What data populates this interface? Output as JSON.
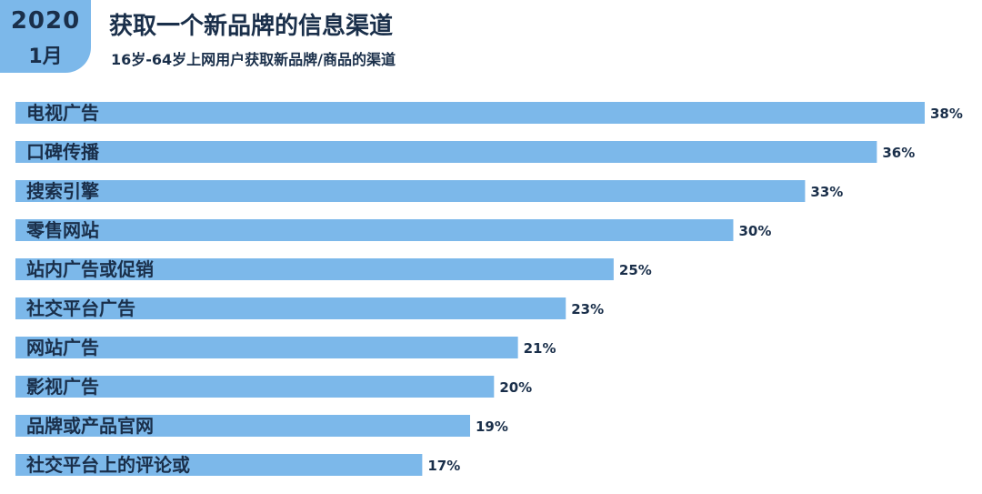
{
  "header": {
    "year": "2020",
    "month": "1月",
    "title": "获取一个新品牌的信息渠道",
    "subtitle": "16岁-64岁上网用户获取新品牌/商品的渠道"
  },
  "colors": {
    "bar": "#7cb8ea",
    "text": "#1a2f4a"
  },
  "chart_data": {
    "type": "bar",
    "orientation": "horizontal",
    "categories": [
      "电视广告",
      "口碑传播",
      "搜索引擎",
      "零售网站",
      "站内广告或促销",
      "社交平台广告",
      "网站广告",
      "影视广告",
      "品牌或产品官网",
      "社交平台上的评论或"
    ],
    "values": [
      38,
      36,
      33,
      30,
      25,
      23,
      21,
      20,
      19,
      17
    ],
    "value_labels": [
      "38%",
      "36%",
      "33%",
      "30%",
      "25%",
      "23%",
      "21%",
      "20%",
      "19%",
      "17%"
    ],
    "xlim": [
      0,
      38
    ],
    "grid": false,
    "legend": "none"
  }
}
